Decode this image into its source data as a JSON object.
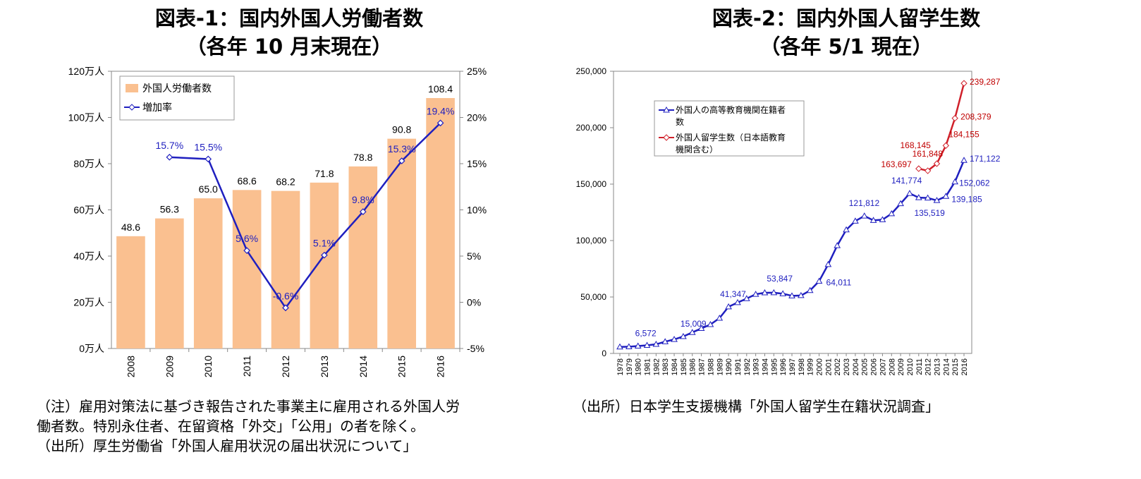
{
  "chart1": {
    "title_line1": "図表-1：国内外国人労働者数",
    "title_line2": "（各年 10 月末現在）",
    "notes": [
      "（注）雇用対策法に基づき報告された事業主に雇用される外国人労",
      "働者数。特別永住者、在留資格「外交」「公用」の者を除く。",
      "（出所）厚生労働省「外国人雇用状況の届出状況について」"
    ]
  },
  "chart2": {
    "title_line1": "図表-2：国内外国人留学生数",
    "title_line2": "（各年 5/1 現在）",
    "notes": [
      "（出所）日本学生支援機構「外国人留学生在籍状況調査」"
    ]
  },
  "colors": {
    "bar": "#FAC090",
    "line1": "#1F1FBF",
    "blue_line": "#1F1FBF",
    "red_line": "#D0202A",
    "label_blue": "#1F1FBF",
    "label_red": "#C00000"
  },
  "chart_data": [
    {
      "type": "bar",
      "categories": [
        "2008",
        "2009",
        "2010",
        "2011",
        "2012",
        "2013",
        "2014",
        "2015",
        "2016"
      ],
      "series": [
        {
          "name": "外国人労働者数",
          "type": "bar",
          "axis": "left",
          "values": [
            48.6,
            56.3,
            65.0,
            68.6,
            68.2,
            71.8,
            78.8,
            90.8,
            108.4
          ],
          "labels": [
            "48.6",
            "56.3",
            "65.0",
            "68.6",
            "68.2",
            "71.8",
            "78.8",
            "90.8",
            "108.4"
          ]
        },
        {
          "name": "増加率",
          "type": "line",
          "axis": "right",
          "values": [
            null,
            15.7,
            15.5,
            5.6,
            -0.6,
            5.1,
            9.8,
            15.3,
            19.4
          ],
          "labels": [
            "",
            "15.7%",
            "15.5%",
            "5.6%",
            "-0.6%",
            "5.1%",
            "9.8%",
            "15.3%",
            "19.4%"
          ]
        }
      ],
      "ylim": [
        0,
        120
      ],
      "y2lim": [
        -5,
        25
      ],
      "y_ticks": [
        "0万人",
        "20万人",
        "40万人",
        "60万人",
        "80万人",
        "100万人",
        "120万人"
      ],
      "y2_ticks": [
        "-5%",
        "0%",
        "5%",
        "10%",
        "15%",
        "20%",
        "25%"
      ],
      "legend_position": "top-left"
    },
    {
      "type": "line",
      "x": [
        "1978",
        "1979",
        "1980",
        "1981",
        "1982",
        "1983",
        "1984",
        "1985",
        "1986",
        "1987",
        "1988",
        "1989",
        "1990",
        "1991",
        "1992",
        "1993",
        "1994",
        "1995",
        "1996",
        "1997",
        "1998",
        "1999",
        "2000",
        "2001",
        "2002",
        "2003",
        "2004",
        "2005",
        "2006",
        "2007",
        "2008",
        "2009",
        "2010",
        "2011",
        "2012",
        "2013",
        "2014",
        "2015",
        "2016"
      ],
      "series": [
        {
          "name": "外国人の高等教育機関在籍者数",
          "values": [
            5755,
            5933,
            6572,
            7179,
            8116,
            10428,
            12410,
            15009,
            18631,
            22154,
            25643,
            31251,
            41347,
            45066,
            48561,
            52405,
            53787,
            53847,
            52921,
            51047,
            51298,
            55755,
            64011,
            78812,
            95550,
            109508,
            117302,
            121812,
            117927,
            118498,
            123829,
            132720,
            141774,
            138075,
            137756,
            135519,
            139185,
            152062,
            171122
          ],
          "labels": {
            "1980": "6,572",
            "1985": "15,009",
            "1990": "41,347",
            "1995": "53,847",
            "2000": "64,011",
            "2005": "121,812",
            "2010": "141,774",
            "2013": "135,519",
            "2014": "139,185",
            "2015": "152,062",
            "2016": "171,122"
          }
        },
        {
          "name": "外国人留学生数（日本語教育機関含む）",
          "values": [
            null,
            null,
            null,
            null,
            null,
            null,
            null,
            null,
            null,
            null,
            null,
            null,
            null,
            null,
            null,
            null,
            null,
            null,
            null,
            null,
            null,
            null,
            null,
            null,
            null,
            null,
            null,
            null,
            null,
            null,
            null,
            null,
            null,
            163697,
            161848,
            168145,
            184155,
            208379,
            239287
          ],
          "labels": {
            "2011": "163,697",
            "2012": "161,848",
            "2013": "168,145",
            "2014": "184,155",
            "2015": "208,379",
            "2016": "239,287"
          }
        }
      ],
      "ylim": [
        0,
        250000
      ],
      "y_ticks": [
        "0",
        "50,000",
        "100,000",
        "150,000",
        "200,000",
        "250,000"
      ],
      "legend_labels": [
        "外国人の高等教育機関在籍者",
        "数",
        "外国人留学生数（日本語教育",
        "機関含む）"
      ],
      "legend_position": "top-left"
    }
  ]
}
